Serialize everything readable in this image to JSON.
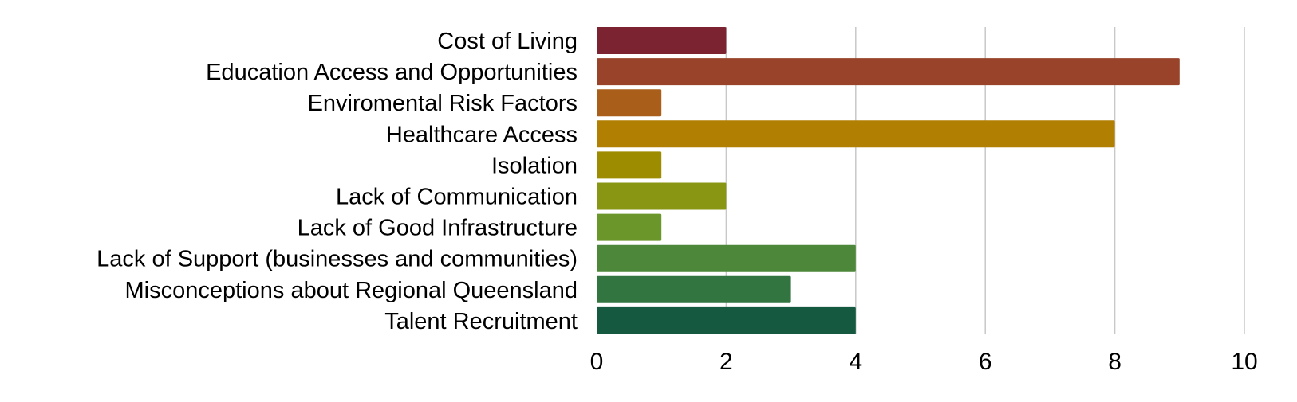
{
  "chart_data": {
    "type": "bar",
    "orientation": "horizontal",
    "categories": [
      "Cost of Living",
      "Education Access and Opportunities",
      "Enviromental Risk Factors",
      "Healthcare Access",
      "Isolation",
      "Lack of Communication",
      "Lack of Good Infrastructure",
      "Lack of Support (businesses and communities)",
      "Misconceptions about Regional Queensland",
      "Talent Recruitment"
    ],
    "values": [
      2,
      9,
      1,
      8,
      1,
      2,
      1,
      4,
      3,
      4
    ],
    "colors": [
      "#7b2330",
      "#98432a",
      "#a95e1a",
      "#b17f02",
      "#9d8c00",
      "#889613",
      "#6b962a",
      "#4d8739",
      "#327541",
      "#155941"
    ],
    "xlim": [
      0,
      10
    ],
    "xticks": [
      0,
      2,
      4,
      6,
      8,
      10
    ],
    "title": "",
    "xlabel": "",
    "ylabel": "",
    "grid": "vertical",
    "legend": "none"
  }
}
